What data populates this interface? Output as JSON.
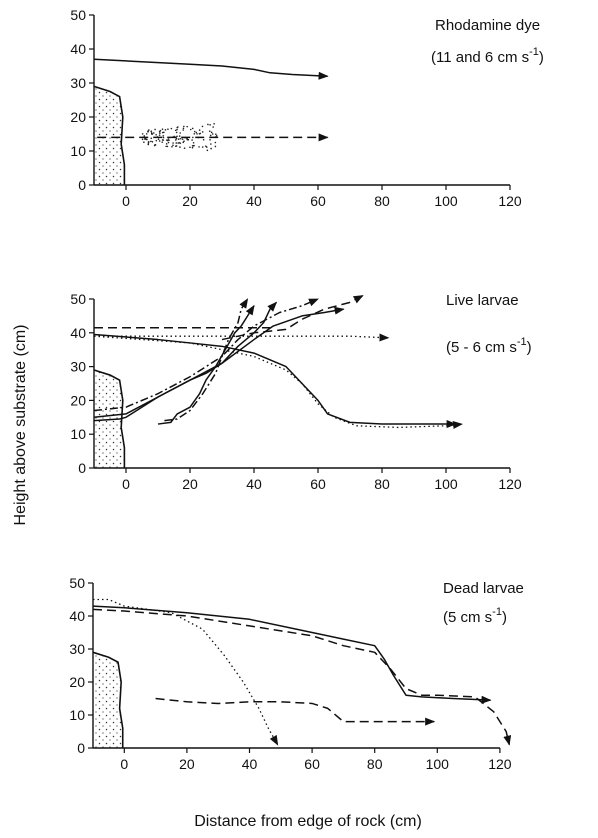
{
  "figure": {
    "ylabel": "Height above substrate (cm)",
    "xlabel": "Distance from edge of rock (cm)"
  },
  "chart_data": [
    {
      "type": "line",
      "label": "Rhodamine dye",
      "sublabel_pre": "(11 and 6 cm s",
      "sublabel_sup": "-1",
      "sublabel_post": ")",
      "xlim": [
        -10,
        120
      ],
      "ylim": [
        0,
        50
      ],
      "xticks": [
        0,
        20,
        40,
        60,
        80,
        100,
        120
      ],
      "yticks": [
        0,
        10,
        20,
        30,
        40,
        50
      ],
      "rock_profile": [
        [
          -10,
          29
        ],
        [
          -5,
          27.5
        ],
        [
          -2,
          26
        ],
        [
          -1,
          20
        ],
        [
          -1.5,
          12
        ],
        [
          -0.5,
          6
        ],
        [
          -0.5,
          0
        ]
      ],
      "series": [
        {
          "style": "solid",
          "arrow": true,
          "points": [
            [
              -10,
              37
            ],
            [
              0,
              36.5
            ],
            [
              20,
              35.5
            ],
            [
              30,
              35
            ],
            [
              40,
              34
            ],
            [
              45,
              33
            ],
            [
              52,
              32.5
            ],
            [
              63,
              32
            ]
          ]
        },
        {
          "style": "dashed",
          "arrow": true,
          "points": [
            [
              -9,
              14
            ],
            [
              0,
              14
            ],
            [
              20,
              14
            ],
            [
              40,
              14
            ],
            [
              63,
              14
            ]
          ]
        }
      ],
      "dye_cloud_x": [
        5,
        29
      ],
      "dye_cloud_y": [
        10,
        18
      ]
    },
    {
      "type": "line",
      "label": "Live larvae",
      "sublabel_pre": "(5 - 6 cm s",
      "sublabel_sup": "-1",
      "sublabel_post": ")",
      "xlim": [
        -10,
        120
      ],
      "ylim": [
        0,
        50
      ],
      "xticks": [
        0,
        20,
        40,
        60,
        80,
        100,
        120
      ],
      "yticks": [
        0,
        10,
        20,
        30,
        40,
        50
      ],
      "rock_profile": [
        [
          -10,
          29
        ],
        [
          -5,
          27.5
        ],
        [
          -2,
          26
        ],
        [
          -1,
          20
        ],
        [
          -1.5,
          12
        ],
        [
          -0.5,
          6
        ],
        [
          -0.5,
          0
        ]
      ],
      "series": [
        {
          "style": "dashed",
          "arrow": false,
          "points": [
            [
              -10,
              41.5
            ],
            [
              0,
              41.5
            ],
            [
              20,
              41.5
            ],
            [
              40,
              41.5
            ],
            [
              45,
              41.5
            ]
          ]
        },
        {
          "style": "dotted",
          "arrow": true,
          "points": [
            [
              -10,
              39
            ],
            [
              20,
              39
            ],
            [
              40,
              39
            ],
            [
              60,
              39
            ],
            [
              70,
              39
            ],
            [
              82,
              38.5
            ]
          ]
        },
        {
          "style": "solid",
          "arrow": true,
          "points": [
            [
              -10,
              39.5
            ],
            [
              10,
              38
            ],
            [
              20,
              37
            ],
            [
              30,
              36
            ],
            [
              40,
              34
            ],
            [
              50,
              30
            ],
            [
              55,
              25
            ],
            [
              60,
              20
            ],
            [
              63,
              16
            ],
            [
              70,
              13.5
            ],
            [
              80,
              13
            ],
            [
              90,
              13
            ],
            [
              103,
              13
            ]
          ]
        },
        {
          "style": "dotted",
          "arrow": true,
          "points": [
            [
              -10,
              39
            ],
            [
              5,
              38
            ],
            [
              20,
              37
            ],
            [
              30,
              35
            ],
            [
              40,
              33
            ],
            [
              50,
              29
            ],
            [
              55,
              25
            ],
            [
              60,
              19
            ],
            [
              65,
              15
            ],
            [
              72,
              12.5
            ],
            [
              85,
              12
            ],
            [
              100,
              12.5
            ],
            [
              105,
              13
            ]
          ]
        },
        {
          "style": "solid",
          "arrow": true,
          "points": [
            [
              -10,
              14
            ],
            [
              -2,
              14.5
            ],
            [
              0,
              15
            ],
            [
              10,
              21
            ],
            [
              20,
              26
            ],
            [
              30,
              31
            ],
            [
              40,
              38
            ],
            [
              46,
              42
            ],
            [
              55,
              45
            ],
            [
              62,
              46
            ],
            [
              68,
              47
            ]
          ]
        },
        {
          "style": "solid",
          "arrow": true,
          "points": [
            [
              -10,
              15
            ],
            [
              0,
              16
            ],
            [
              10,
              21
            ],
            [
              20,
              26
            ],
            [
              25,
              28
            ],
            [
              30,
              31
            ],
            [
              35,
              36
            ],
            [
              40,
              40
            ],
            [
              43,
              43
            ],
            [
              45,
              47
            ],
            [
              47,
              49
            ]
          ]
        },
        {
          "style": "dashdot",
          "arrow": true,
          "points": [
            [
              -10,
              17
            ],
            [
              0,
              18
            ],
            [
              10,
              22
            ],
            [
              20,
              27
            ],
            [
              30,
              33
            ],
            [
              35,
              38
            ],
            [
              40,
              42
            ],
            [
              48,
              46
            ],
            [
              55,
              48
            ],
            [
              60,
              50
            ]
          ]
        },
        {
          "style": "solid",
          "arrow": true,
          "points": [
            [
              10,
              13
            ],
            [
              14,
              13.5
            ],
            [
              16,
              16
            ],
            [
              20,
              18
            ],
            [
              23,
              22
            ],
            [
              25,
              26
            ],
            [
              28,
              30
            ],
            [
              31,
              35
            ],
            [
              34,
              40
            ],
            [
              36,
              42
            ],
            [
              38,
              45
            ],
            [
              40,
              48
            ]
          ]
        },
        {
          "style": "dashdot",
          "arrow": true,
          "points": [
            [
              12,
              14
            ],
            [
              16,
              14.5
            ],
            [
              20,
              17
            ],
            [
              24,
              22
            ],
            [
              28,
              28
            ],
            [
              30,
              33
            ],
            [
              32,
              38
            ],
            [
              35,
              43
            ],
            [
              36,
              47
            ],
            [
              38,
              50
            ]
          ]
        },
        {
          "style": "dashed",
          "arrow": true,
          "points": [
            [
              30,
              38
            ],
            [
              35,
              39
            ],
            [
              40,
              40
            ],
            [
              50,
              41
            ],
            [
              55,
              44
            ],
            [
              62,
              47
            ],
            [
              70,
              49
            ],
            [
              74,
              51
            ]
          ]
        }
      ]
    },
    {
      "type": "line",
      "label": "Dead larvae",
      "sublabel_pre": "(5 cm s",
      "sublabel_sup": "-1",
      "sublabel_post": ")",
      "xlim": [
        -10,
        120
      ],
      "ylim": [
        0,
        50
      ],
      "xticks": [
        0,
        20,
        40,
        60,
        80,
        100,
        120
      ],
      "yticks": [
        0,
        10,
        20,
        30,
        40,
        50
      ],
      "rock_profile": [
        [
          -10,
          29
        ],
        [
          -5,
          27.5
        ],
        [
          -2,
          26
        ],
        [
          -1,
          20
        ],
        [
          -1.5,
          12
        ],
        [
          -0.5,
          6
        ],
        [
          -0.5,
          0
        ]
      ],
      "series": [
        {
          "style": "solid",
          "arrow": true,
          "points": [
            [
              -10,
              43
            ],
            [
              0,
              42.5
            ],
            [
              20,
              41
            ],
            [
              40,
              39
            ],
            [
              60,
              35
            ],
            [
              70,
              33
            ],
            [
              80,
              31
            ],
            [
              83,
              27
            ],
            [
              86,
              22
            ],
            [
              90,
              16
            ],
            [
              95,
              15.5
            ],
            [
              105,
              15
            ],
            [
              117,
              14.5
            ]
          ]
        },
        {
          "style": "dashed",
          "arrow": true,
          "points": [
            [
              -10,
              42
            ],
            [
              0,
              41.5
            ],
            [
              20,
              40
            ],
            [
              40,
              37
            ],
            [
              60,
              34
            ],
            [
              70,
              31
            ],
            [
              80,
              29
            ],
            [
              85,
              24
            ],
            [
              90,
              18
            ],
            [
              95,
              16
            ],
            [
              100,
              16
            ],
            [
              112,
              15.5
            ],
            [
              118,
              11
            ],
            [
              122,
              5
            ],
            [
              123,
              1
            ]
          ]
        },
        {
          "style": "dotted",
          "arrow": true,
          "points": [
            [
              -10,
              45
            ],
            [
              -5,
              45
            ],
            [
              0,
              43
            ],
            [
              15,
              41
            ],
            [
              25,
              36
            ],
            [
              32,
              28
            ],
            [
              38,
              20
            ],
            [
              43,
              12
            ],
            [
              46,
              6
            ],
            [
              49,
              1
            ]
          ]
        },
        {
          "style": "dashed",
          "arrow": true,
          "points": [
            [
              10,
              15
            ],
            [
              20,
              14
            ],
            [
              30,
              13.5
            ],
            [
              40,
              14
            ],
            [
              50,
              14
            ],
            [
              60,
              13.5
            ],
            [
              65,
              12
            ],
            [
              70,
              8
            ],
            [
              80,
              8
            ],
            [
              90,
              8
            ],
            [
              99,
              8
            ]
          ]
        }
      ]
    }
  ]
}
